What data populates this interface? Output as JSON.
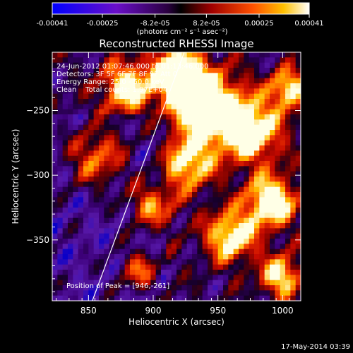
{
  "chart_data": {
    "type": "heatmap",
    "title": "Reconstructed RHESSI Image",
    "xlabel": "Heliocentric X (arcsec)",
    "ylabel": "Heliocentric Y (arcsec)",
    "xlim": [
      822,
      1014
    ],
    "ylim": [
      -397,
      -205
    ],
    "xticks": [
      850,
      900,
      950,
      1000
    ],
    "yticks": [
      -250,
      -300,
      -350
    ],
    "colorbar": {
      "tick_labels": [
        "-0.00041",
        "-0.00025",
        "-8.2e-05",
        "8.2e-05",
        "0.00025",
        "0.00041"
      ],
      "tick_values": [
        -0.00041,
        -0.00025,
        -8.2e-05,
        8.2e-05,
        0.00025,
        0.00041
      ],
      "range": [
        -0.00041,
        0.00041
      ],
      "units_label": "(photons cm⁻² s⁻¹ asec⁻²)"
    },
    "annotations": [
      "24-Jun-2012 01:07:46.000 to 01:13:46.000",
      "Detectors: 3F 5F 6F 7F 8F 9F Att 0",
      "Energy Range: 25.0 - 50.0 keV",
      "Clean    Total counts: 1.97E+04",
      "Position of Peak = [946,-261]"
    ],
    "peak": {
      "x": 946,
      "y": -261
    },
    "limb_line": {
      "x": [
        853,
        924
      ],
      "y": [
        -397,
        -205
      ]
    }
  },
  "footer": {
    "timestamp": "17-May-2014 03:39"
  }
}
